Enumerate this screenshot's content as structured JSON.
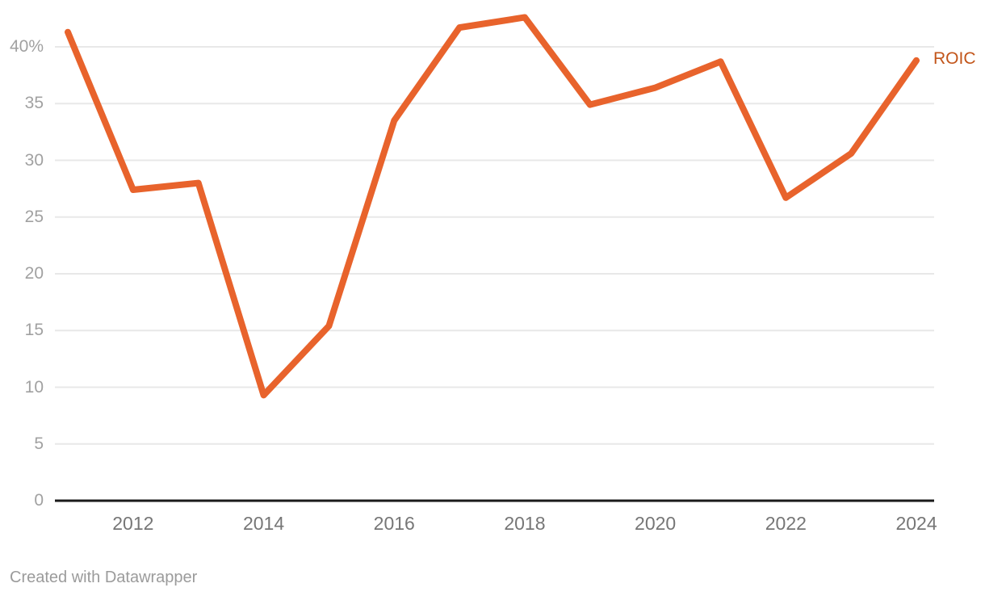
{
  "chart_data": {
    "type": "line",
    "title": "",
    "xlabel": "",
    "ylabel": "",
    "x": [
      2011,
      2012,
      2013,
      2014,
      2015,
      2016,
      2017,
      2018,
      2019,
      2020,
      2021,
      2022,
      2023,
      2024
    ],
    "series": [
      {
        "name": "ROIC",
        "values": [
          41.3,
          27.4,
          28.0,
          9.3,
          15.4,
          33.5,
          41.7,
          42.6,
          34.9,
          36.4,
          38.7,
          26.7,
          30.6,
          38.8
        ]
      }
    ],
    "label": "ROIC",
    "line_color": "#E8632C",
    "label_color": "#C2551A",
    "xlim": [
      2011,
      2024
    ],
    "ylim": [
      0,
      44
    ],
    "grid": "horizontal",
    "legend_position": "end-of-line",
    "y_ticks": [
      {
        "value": 0,
        "label": "0"
      },
      {
        "value": 5,
        "label": "5"
      },
      {
        "value": 10,
        "label": "10"
      },
      {
        "value": 15,
        "label": "15"
      },
      {
        "value": 20,
        "label": "20"
      },
      {
        "value": 25,
        "label": "25"
      },
      {
        "value": 30,
        "label": "30"
      },
      {
        "value": 35,
        "label": "35"
      },
      {
        "value": 40,
        "label": "40%"
      }
    ],
    "x_ticks": [
      {
        "value": 2012,
        "label": "2012"
      },
      {
        "value": 2014,
        "label": "2014"
      },
      {
        "value": 2016,
        "label": "2016"
      },
      {
        "value": 2018,
        "label": "2018"
      },
      {
        "value": 2020,
        "label": "2020"
      },
      {
        "value": 2022,
        "label": "2022"
      },
      {
        "value": 2024,
        "label": "2024"
      }
    ]
  },
  "footer": {
    "text": "Created with Datawrapper"
  }
}
